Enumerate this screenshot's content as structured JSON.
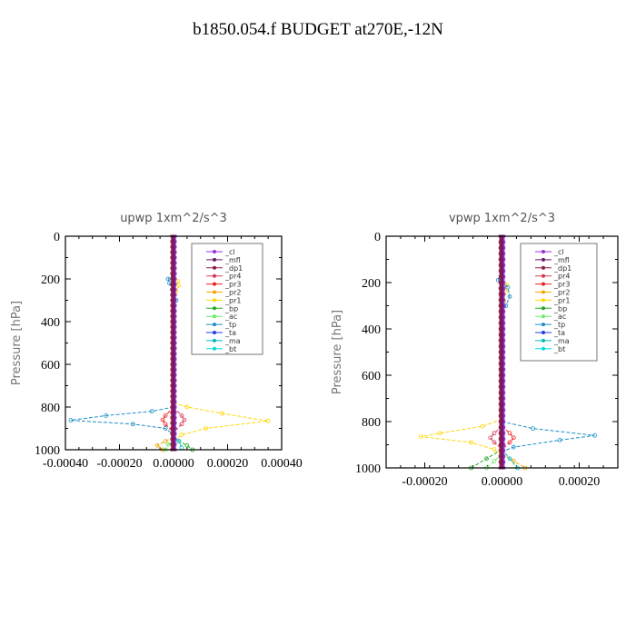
{
  "title": "b1850.054.f  BUDGET at270E,-12N",
  "legend_labels": [
    "_cl",
    "_mfl",
    "_dp1",
    "_pr4",
    "_pr3",
    "_pr2",
    "_pr1",
    "_bp",
    "_ac",
    "_tp",
    "_ta",
    "_ma",
    "_bt"
  ],
  "colors": {
    "_cl": "#9b30d9",
    "_mfl": "#6a1b6a",
    "_dp1": "#8b1a4a",
    "_pr4": "#d43a5a",
    "_pr3": "#ee2222",
    "_pr2": "#f0a800",
    "_pr1": "#ffd700",
    "_bp": "#22aa22",
    "_ac": "#66ee66",
    "_tp": "#1e8fc8",
    "_ta": "#2040e0",
    "_ma": "#00bbbb",
    "_bt": "#00dddd"
  },
  "chart_data": [
    {
      "type": "line",
      "title": "upwp   1xm^2/s^3",
      "ylabel": "Pressure [hPa]",
      "xlim": [
        -0.0004,
        0.0004
      ],
      "ylim": [
        1000,
        0
      ],
      "xticks": [
        -0.0004,
        -0.0002,
        0.0,
        0.0002,
        0.0004
      ],
      "xtick_labels": [
        "-0.00040",
        "-0.00020",
        "0.00000",
        "0.00020",
        "0.00040"
      ],
      "yticks": [
        0,
        200,
        400,
        600,
        800,
        1000
      ],
      "ytick_labels": [
        "0",
        "200",
        "400",
        "600",
        "800",
        "1000"
      ],
      "series": [
        {
          "name": "_pr1",
          "p": [
            780,
            800,
            830,
            865,
            900,
            930,
            960
          ],
          "x": [
            0.0,
            5e-05,
            0.00018,
            0.00035,
            0.00012,
            3e-05,
            0.0
          ]
        },
        {
          "name": "_pr1",
          "p": [
            190,
            210,
            230,
            260,
            300
          ],
          "x": [
            0.0,
            1.5e-05,
            2e-05,
            1e-05,
            0.0
          ]
        },
        {
          "name": "_tp",
          "p": [
            800,
            820,
            840,
            862,
            880,
            900,
            930
          ],
          "x": [
            0.0,
            -8e-05,
            -0.00025,
            -0.00038,
            -0.00015,
            -3e-05,
            0.0
          ]
        },
        {
          "name": "_tp",
          "p": [
            180,
            200,
            220,
            250,
            300,
            320
          ],
          "x": [
            0.0,
            -2e-05,
            -1.5e-05,
            -5e-06,
            1e-05,
            0.0
          ]
        },
        {
          "name": "_pr2",
          "p": [
            940,
            960,
            980,
            1000
          ],
          "x": [
            0.0,
            -3e-05,
            -6e-05,
            -4e-05
          ]
        },
        {
          "name": "_pr3",
          "p": [
            800,
            840,
            860,
            880,
            920
          ],
          "x": [
            0.0,
            -3e-05,
            -4e-05,
            -3e-05,
            0.0
          ]
        },
        {
          "name": "_pr4",
          "p": [
            800,
            840,
            860,
            880,
            920
          ],
          "x": [
            0.0,
            3e-05,
            4e-05,
            3e-05,
            0.0
          ]
        },
        {
          "name": "_bp",
          "p": [
            940,
            960,
            980,
            1000
          ],
          "x": [
            0.0,
            2e-05,
            5e-05,
            7e-05
          ]
        },
        {
          "name": "_ac",
          "p": [
            950,
            975,
            1000
          ],
          "x": [
            0.0,
            -2e-05,
            -3e-05
          ]
        },
        {
          "name": "_ma",
          "p": [
            930,
            960,
            990
          ],
          "x": [
            0.0,
            2e-05,
            3e-05
          ]
        },
        {
          "name": "_cl",
          "p": [
            0,
            1000
          ],
          "x": [
            5e-06,
            5e-06
          ]
        },
        {
          "name": "_mfl",
          "p": [
            0,
            1000
          ],
          "x": [
            0.0,
            0.0
          ]
        },
        {
          "name": "_dp1",
          "p": [
            0,
            1000
          ],
          "x": [
            -5e-06,
            -5e-06
          ]
        }
      ]
    },
    {
      "type": "line",
      "title": "vpwp   1xm^2/s^3",
      "ylabel": "Pressure [hPa]",
      "xlim": [
        -0.0003,
        0.0003
      ],
      "ylim": [
        1000,
        0
      ],
      "xticks": [
        -0.0002,
        0.0,
        0.0002
      ],
      "xtick_labels": [
        "-0.00020",
        "0.00000",
        "0.00020"
      ],
      "yticks": [
        0,
        200,
        400,
        600,
        800,
        1000
      ],
      "ytick_labels": [
        "0",
        "200",
        "400",
        "600",
        "800",
        "1000"
      ],
      "series": [
        {
          "name": "_pr1",
          "p": [
            790,
            820,
            850,
            865,
            890,
            920,
            950
          ],
          "x": [
            0.0,
            -5e-05,
            -0.00016,
            -0.00021,
            -8e-05,
            -2e-05,
            0.0
          ]
        },
        {
          "name": "_pr1",
          "p": [
            180,
            210,
            240,
            280,
            320
          ],
          "x": [
            0.0,
            1.2e-05,
            1e-05,
            5e-06,
            0.0
          ]
        },
        {
          "name": "_tp",
          "p": [
            800,
            830,
            860,
            880,
            910,
            930
          ],
          "x": [
            0.0,
            8e-05,
            0.00024,
            0.00015,
            3e-05,
            0.0
          ]
        },
        {
          "name": "_tp",
          "p": [
            160,
            190,
            220,
            260,
            300,
            330
          ],
          "x": [
            0.0,
            -1e-05,
            1.5e-05,
            2e-05,
            1e-05,
            0.0
          ]
        },
        {
          "name": "_pr2",
          "p": [
            940,
            970,
            1000
          ],
          "x": [
            0.0,
            3e-05,
            6e-05
          ]
        },
        {
          "name": "_pr3",
          "p": [
            820,
            850,
            870,
            890,
            920
          ],
          "x": [
            0.0,
            2e-05,
            3e-05,
            2e-05,
            0.0
          ]
        },
        {
          "name": "_pr4",
          "p": [
            820,
            850,
            870,
            890,
            920
          ],
          "x": [
            0.0,
            -2e-05,
            -3e-05,
            -2e-05,
            0.0
          ]
        },
        {
          "name": "_bp",
          "p": [
            920,
            960,
            1000
          ],
          "x": [
            0.0,
            -4e-05,
            -8e-05
          ]
        },
        {
          "name": "_ac",
          "p": [
            940,
            970,
            1000
          ],
          "x": [
            0.0,
            -2e-05,
            -4e-05
          ]
        },
        {
          "name": "_ma",
          "p": [
            920,
            960,
            1000
          ],
          "x": [
            0.0,
            2e-05,
            4e-05
          ]
        },
        {
          "name": "_cl",
          "p": [
            0,
            1000
          ],
          "x": [
            4e-06,
            4e-06
          ]
        },
        {
          "name": "_mfl",
          "p": [
            0,
            1000
          ],
          "x": [
            0.0,
            0.0
          ]
        },
        {
          "name": "_dp1",
          "p": [
            0,
            1000
          ],
          "x": [
            -4e-06,
            -4e-06
          ]
        }
      ]
    }
  ]
}
